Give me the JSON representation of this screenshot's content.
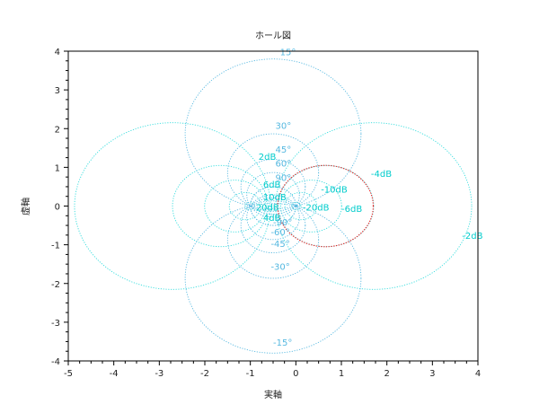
{
  "chart_data": {
    "type": "line",
    "title": "ホール図",
    "xlabel": "実軸",
    "ylabel": "虚軸",
    "xlim": [
      -5,
      4
    ],
    "ylim": [
      -4,
      4
    ],
    "xticks": [
      "-5",
      "-4",
      "-3",
      "-2",
      "-1",
      "0",
      "1",
      "2",
      "3",
      "4"
    ],
    "yticks": [
      "-4",
      "-3",
      "-2",
      "-1",
      "0",
      "1",
      "2",
      "3",
      "4"
    ],
    "grid": false,
    "colors": {
      "gain_circles": "#33dddd",
      "phase_circles": "#55b8e0",
      "locus": "#ee2222",
      "label_gain": "#00cccc",
      "label_phase": "#55b8e0"
    },
    "gain_circles_db": [
      -20,
      -10,
      -6,
      -4,
      -2,
      2,
      4,
      6,
      10,
      20
    ],
    "phase_circles_deg": [
      -90,
      -60,
      -45,
      -30,
      -15,
      15,
      30,
      45,
      60,
      90
    ],
    "gain_labels": [
      {
        "text": "-20dB",
        "x": 0.15,
        "y": -0.12
      },
      {
        "text": "-10dB",
        "x": 0.55,
        "y": 0.35
      },
      {
        "text": "-6dB",
        "x": 1.0,
        "y": -0.15
      },
      {
        "text": "-4dB",
        "x": 1.65,
        "y": 0.75
      },
      {
        "text": "-2dB",
        "x": 3.65,
        "y": -0.85
      },
      {
        "text": "2dB",
        "x": -0.82,
        "y": 1.2
      },
      {
        "text": "4dB",
        "x": -0.72,
        "y": -0.38
      },
      {
        "text": "6dB",
        "x": -0.72,
        "y": 0.48
      },
      {
        "text": "10dB",
        "x": -0.72,
        "y": 0.15
      },
      {
        "text": "20dB",
        "x": -0.88,
        "y": -0.12
      }
    ],
    "phase_labels": [
      {
        "text": "15°",
        "x": -0.35,
        "y": 3.9
      },
      {
        "text": "30°",
        "x": -0.45,
        "y": 2.0
      },
      {
        "text": "45°",
        "x": -0.45,
        "y": 1.38
      },
      {
        "text": "60°",
        "x": -0.45,
        "y": 1.02
      },
      {
        "text": "90°",
        "x": -0.45,
        "y": 0.65
      },
      {
        "text": "-90°",
        "x": -0.5,
        "y": -0.5
      },
      {
        "text": "-60°",
        "x": -0.55,
        "y": -0.75
      },
      {
        "text": "-45°",
        "x": -0.55,
        "y": -1.05
      },
      {
        "text": "-30°",
        "x": -0.55,
        "y": -1.65
      },
      {
        "text": "-15°",
        "x": -0.5,
        "y": -3.6
      }
    ],
    "series": [
      {
        "kind": "closed-loop locus",
        "center": [
          0.65,
          0
        ],
        "radius": 1.05
      }
    ]
  }
}
